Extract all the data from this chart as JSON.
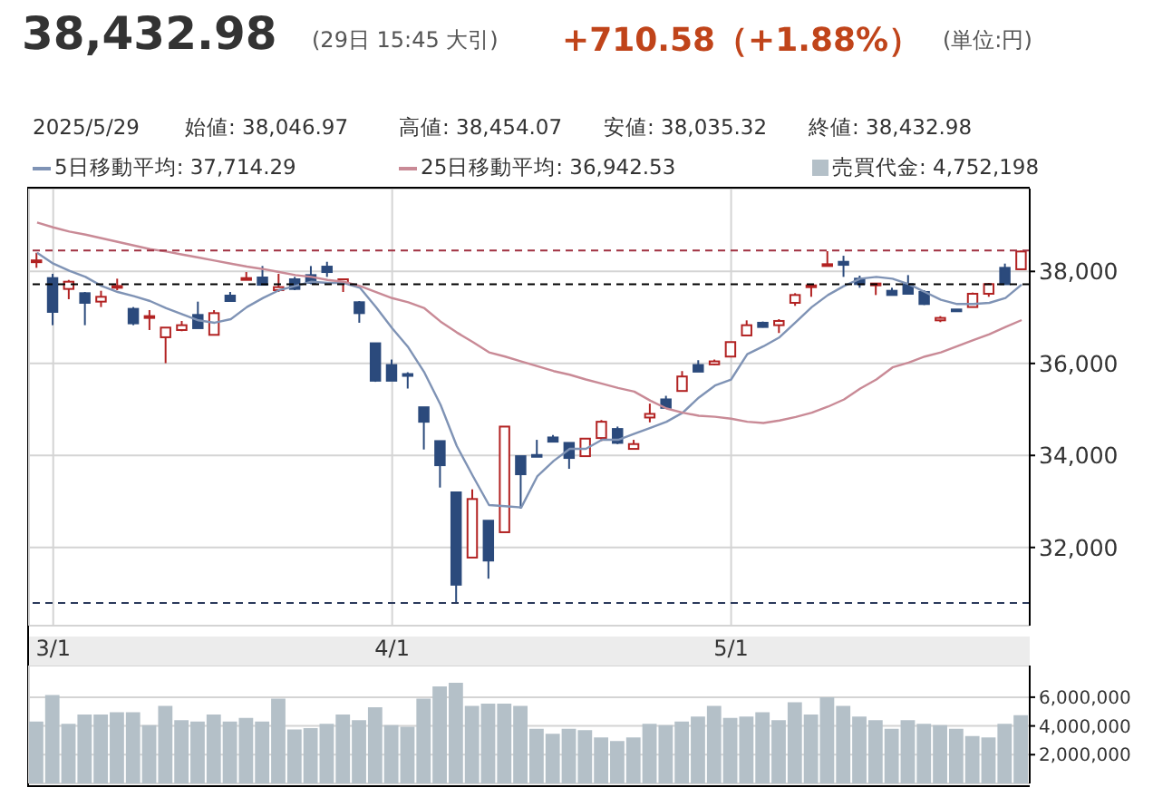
{
  "chart_data": [
    {
      "type": "candlestick",
      "title": "38,432.98",
      "subtitle": "(29日 15:45 大引)",
      "annotations": [
        "+710.58（+1.88%）",
        "(単位:円)",
        "2025/5/29",
        "始値: 38,046.97",
        "高値: 38,454.07",
        "安値: 38,035.32",
        "終値: 38,432.98"
      ],
      "categories": [
        null,
        "3/1",
        null,
        null,
        null,
        null,
        null,
        null,
        null,
        null,
        null,
        null,
        null,
        null,
        null,
        null,
        null,
        null,
        null,
        null,
        null,
        null,
        "4/1",
        null,
        null,
        null,
        null,
        null,
        null,
        null,
        null,
        null,
        null,
        null,
        null,
        null,
        null,
        null,
        null,
        null,
        null,
        null,
        null,
        "5/1",
        null,
        null,
        null,
        null,
        null,
        null,
        null,
        null,
        null,
        null,
        null,
        null,
        null,
        null,
        null,
        null,
        null,
        null
      ],
      "ohlc": [
        [
          38220,
          38406,
          38078,
          38240
        ],
        [
          37855,
          37947,
          36831,
          37120
        ],
        [
          37619,
          37815,
          37396,
          37776
        ],
        [
          37527,
          37553,
          36831,
          37317
        ],
        [
          37343,
          37579,
          37225,
          37448
        ],
        [
          37658,
          37842,
          37592,
          37684
        ],
        [
          37186,
          37225,
          36831,
          36871
        ],
        [
          37002,
          37159,
          36726,
          37028
        ],
        [
          36569,
          36779,
          36005,
          36779
        ],
        [
          36726,
          36923,
          36700,
          36831
        ],
        [
          37054,
          37343,
          36766,
          36766
        ],
        [
          36621,
          37159,
          36621,
          37093
        ],
        [
          37474,
          37553,
          37356,
          37356
        ],
        [
          37842,
          37986,
          37842,
          37855
        ],
        [
          37868,
          38117,
          37710,
          37710
        ],
        [
          37592,
          37947,
          37553,
          37658
        ],
        [
          37829,
          37881,
          37592,
          37619
        ],
        [
          37920,
          38117,
          37723,
          37750
        ],
        [
          38104,
          38209,
          37881,
          37986
        ],
        [
          37750,
          37829,
          37553,
          37829
        ],
        [
          37330,
          37356,
          36884,
          37093
        ],
        [
          36438,
          36438,
          35600,
          35624
        ],
        [
          35966,
          36084,
          35624,
          35624
        ],
        [
          35769,
          35808,
          35454,
          35743
        ],
        [
          35047,
          35047,
          34129,
          34732
        ],
        [
          34312,
          34312,
          33302,
          33787
        ],
        [
          33197,
          33197,
          30793,
          31190
        ],
        [
          31780,
          33263,
          31780,
          33053
        ],
        [
          32581,
          32581,
          31321,
          31715
        ],
        [
          32331,
          34627,
          32331,
          34627
        ],
        [
          33984,
          33984,
          32843,
          33591
        ],
        [
          34010,
          34339,
          33984,
          33984
        ],
        [
          34391,
          34444,
          34299,
          34299
        ],
        [
          34273,
          34273,
          33709,
          33945
        ],
        [
          33984,
          34365,
          33984,
          34365
        ],
        [
          34378,
          34770,
          34312,
          34732
        ],
        [
          34575,
          34627,
          34247,
          34273
        ],
        [
          34142,
          34339,
          34142,
          34247
        ],
        [
          34824,
          35126,
          34719,
          34903
        ],
        [
          35218,
          35296,
          35034,
          35034
        ],
        [
          35401,
          35834,
          35401,
          35716
        ],
        [
          35966,
          36070,
          35821,
          35821
        ],
        [
          35979,
          36084,
          35966,
          36044
        ],
        [
          36149,
          36464,
          36149,
          36464
        ],
        [
          36608,
          36936,
          36608,
          36831
        ],
        [
          36884,
          36910,
          36780,
          36792
        ],
        [
          36831,
          36962,
          36661,
          36923
        ],
        [
          37317,
          37527,
          37251,
          37487
        ],
        [
          37671,
          37724,
          37448,
          37697
        ],
        [
          38130,
          38440,
          38130,
          38157
        ],
        [
          38209,
          38340,
          37881,
          38143
        ],
        [
          37842,
          37907,
          37645,
          37724
        ],
        [
          37710,
          37737,
          37487,
          37737
        ],
        [
          37579,
          37645,
          37487,
          37487
        ],
        [
          37724,
          37920,
          37514,
          37514
        ],
        [
          37553,
          37592,
          37270,
          37291
        ],
        [
          36936,
          37028,
          36897,
          36989
        ],
        [
          37173,
          37173,
          37120,
          37146
        ],
        [
          37225,
          37540,
          37225,
          37514
        ],
        [
          37514,
          37750,
          37448,
          37724
        ],
        [
          38078,
          38170,
          37722,
          37722
        ],
        [
          38046.97,
          38454.07,
          38035.32,
          38432.98
        ]
      ],
      "colors": [
        "#b22222",
        "#2b4a7c",
        "#b22222",
        "#2b4a7c",
        "#b22222",
        "#b22222",
        "#2b4a7c",
        "#b22222",
        "#b22222",
        "#b22222",
        "#2b4a7c",
        "#b22222",
        "#2b4a7c",
        "#b22222",
        "#2b4a7c",
        "#b22222",
        "#2b4a7c",
        "#2b4a7c",
        "#2b4a7c",
        "#b22222",
        "#2b4a7c",
        "#2b4a7c",
        "#2b4a7c",
        "#2b4a7c",
        "#2b4a7c",
        "#2b4a7c",
        "#2b4a7c",
        "#b22222",
        "#2b4a7c",
        "#b22222",
        "#2b4a7c",
        "#2b4a7c",
        "#2b4a7c",
        "#2b4a7c",
        "#b22222",
        "#b22222",
        "#2b4a7c",
        "#b22222",
        "#b22222",
        "#2b4a7c",
        "#b22222",
        "#2b4a7c",
        "#b22222",
        "#b22222",
        "#b22222",
        "#2b4a7c",
        "#b22222",
        "#b22222",
        "#b22222",
        "#b22222",
        "#2b4a7c",
        "#2b4a7c",
        "#b22222",
        "#2b4a7c",
        "#2b4a7c",
        "#2b4a7c",
        "#b22222",
        "#2b4a7c",
        "#b22222",
        "#b22222",
        "#2b4a7c",
        "#b22222"
      ],
      "series": [
        {
          "type": "line",
          "name": "5日移動平均: 37,714.29",
          "color": "#7f93b5",
          "values": [
            38406,
            38170,
            38012,
            37881,
            37684,
            37553,
            37461,
            37356,
            37199,
            37067,
            36936,
            36884,
            36962,
            37225,
            37422,
            37592,
            37684,
            37776,
            37750,
            37750,
            37645,
            37225,
            36766,
            36350,
            35800,
            35100,
            34207,
            33551,
            32922,
            32896,
            32869,
            33551,
            33879,
            34142,
            34142,
            34339,
            34339,
            34470,
            34601,
            34732,
            34929,
            35257,
            35519,
            35651,
            36202,
            36372,
            36569,
            36897,
            37225,
            37487,
            37684,
            37842,
            37881,
            37842,
            37724,
            37553,
            37382,
            37291,
            37291,
            37317,
            37422,
            37714.29
          ]
        },
        {
          "type": "line",
          "name": "25日移動平均: 36,942.53",
          "color": "#c98a96",
          "values": [
            39062,
            38957,
            38865,
            38799,
            38721,
            38642,
            38563,
            38485,
            38432,
            38366,
            38301,
            38235,
            38170,
            38104,
            38052,
            37986,
            37920,
            37881,
            37815,
            37776,
            37684,
            37553,
            37420,
            37330,
            37199,
            36910,
            36674,
            36464,
            36241,
            36149,
            36044,
            35939,
            35834,
            35755,
            35651,
            35559,
            35467,
            35388,
            35191,
            35021,
            34929,
            34863,
            34840,
            34798,
            34732,
            34706,
            34759,
            34837,
            34929,
            35060,
            35218,
            35454,
            35651,
            35913,
            36018,
            36149,
            36241,
            36372,
            36504,
            36635,
            36792,
            36942.53
          ]
        }
      ],
      "ylim": [
        30300,
        39800
      ],
      "yticks": [
        {
          "value": 32000,
          "label": "32,000"
        },
        {
          "value": 34000,
          "label": "34,000"
        },
        {
          "value": 36000,
          "label": "36,000"
        },
        {
          "value": 38000,
          "label": "38,000"
        }
      ],
      "ref_lines": [
        {
          "axis": "y",
          "value": 38454,
          "color": "#a03040",
          "line_style": "dashed"
        },
        {
          "axis": "y",
          "value": 37722,
          "color": "#000000",
          "line_style": "dashed"
        },
        {
          "axis": "y",
          "value": 30793,
          "color": "#2b3a5c",
          "line_style": "dashed"
        }
      ],
      "grid": true,
      "legend": "top"
    },
    {
      "type": "bar",
      "tick_labels": "y",
      "categories": [
        null,
        null,
        null,
        null,
        null,
        null,
        null,
        null,
        null,
        null,
        null,
        null,
        null,
        null,
        null,
        null,
        null,
        null,
        null,
        null,
        null,
        null,
        null,
        null,
        null,
        null,
        null,
        null,
        null,
        null,
        null,
        null,
        null,
        null,
        null,
        null,
        null,
        null,
        null,
        null,
        null,
        null,
        null,
        null,
        null,
        null,
        null,
        null,
        null,
        null,
        null,
        null,
        null,
        null,
        null,
        null,
        null,
        null,
        null,
        null,
        null,
        null
      ],
      "series": [
        {
          "name": "売買代金: 4,752,198",
          "color": "#b4c0c8",
          "values": [
            4300000,
            6150000,
            4150000,
            4800000,
            4800000,
            4950000,
            4950000,
            4050000,
            5400000,
            4400000,
            4300000,
            4800000,
            4300000,
            4550000,
            4300000,
            5900000,
            3750000,
            3850000,
            4150000,
            4800000,
            4400000,
            5300000,
            4050000,
            3950000,
            5900000,
            6750000,
            7000000,
            5400000,
            5550000,
            5550000,
            5400000,
            3800000,
            3450000,
            3800000,
            3700000,
            3200000,
            2950000,
            3200000,
            4150000,
            4050000,
            4300000,
            4650000,
            5400000,
            4550000,
            4650000,
            4950000,
            4400000,
            5650000,
            4800000,
            6000000,
            5400000,
            4650000,
            4400000,
            3800000,
            4400000,
            4150000,
            4050000,
            3800000,
            3300000,
            3200000,
            4150000,
            4752198
          ]
        }
      ],
      "ylim": [
        0,
        8200000
      ],
      "yticks": [
        {
          "value": 2000000,
          "label": "2,000,000"
        },
        {
          "value": 4000000,
          "label": "4,000,000"
        },
        {
          "value": 6000000,
          "label": "6,000,000"
        }
      ],
      "grid": true,
      "legend": "top"
    }
  ]
}
